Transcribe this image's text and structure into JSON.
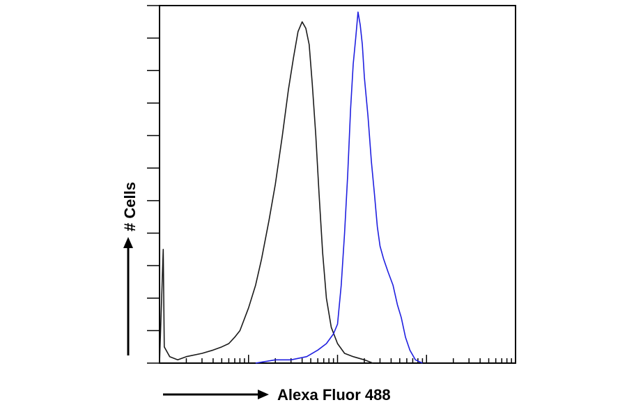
{
  "chart_data": {
    "type": "line",
    "title": "",
    "xlabel": "Alexa Fluor 488",
    "ylabel": "# Cells",
    "x_scale": "log",
    "xlim": [
      1,
      10000
    ],
    "ylim": [
      0,
      110
    ],
    "grid": false,
    "legend": "none",
    "series": [
      {
        "color": "#1a1a1a",
        "points": [
          [
            1.0,
            0
          ],
          [
            1.1,
            35
          ],
          [
            1.13,
            5
          ],
          [
            1.3,
            2
          ],
          [
            1.6,
            1
          ],
          [
            2.0,
            2
          ],
          [
            3.0,
            3
          ],
          [
            4.0,
            4
          ],
          [
            5.0,
            5
          ],
          [
            6.0,
            6
          ],
          [
            7.0,
            8
          ],
          [
            8.0,
            10
          ],
          [
            10.0,
            17
          ],
          [
            12.0,
            24
          ],
          [
            14.0,
            32
          ],
          [
            17.0,
            44
          ],
          [
            20.0,
            55
          ],
          [
            24.0,
            70
          ],
          [
            28.0,
            84
          ],
          [
            32.0,
            94
          ],
          [
            36.0,
            102
          ],
          [
            40.0,
            105
          ],
          [
            44.0,
            103
          ],
          [
            48.0,
            98
          ],
          [
            52.0,
            86
          ],
          [
            57.0,
            70
          ],
          [
            62.0,
            52
          ],
          [
            68.0,
            34
          ],
          [
            75.0,
            20
          ],
          [
            85.0,
            11
          ],
          [
            100.0,
            6
          ],
          [
            120.0,
            3
          ],
          [
            150.0,
            2
          ],
          [
            200.0,
            1
          ],
          [
            250.0,
            0
          ]
        ]
      },
      {
        "color": "#1f1fe0",
        "points": [
          [
            12.0,
            0
          ],
          [
            20.0,
            1
          ],
          [
            30.0,
            1
          ],
          [
            45.0,
            2
          ],
          [
            60.0,
            4
          ],
          [
            75.0,
            6
          ],
          [
            90.0,
            9
          ],
          [
            100.0,
            12
          ],
          [
            110.0,
            24
          ],
          [
            120.0,
            40
          ],
          [
            130.0,
            58
          ],
          [
            140.0,
            78
          ],
          [
            150.0,
            92
          ],
          [
            160.0,
            100
          ],
          [
            170.0,
            108
          ],
          [
            180.0,
            104
          ],
          [
            190.0,
            98
          ],
          [
            200.0,
            88
          ],
          [
            220.0,
            76
          ],
          [
            240.0,
            62
          ],
          [
            260.0,
            52
          ],
          [
            280.0,
            42
          ],
          [
            300.0,
            36
          ],
          [
            330.0,
            32
          ],
          [
            370.0,
            28
          ],
          [
            420.0,
            24
          ],
          [
            470.0,
            18
          ],
          [
            520.0,
            14
          ],
          [
            580.0,
            8
          ],
          [
            650.0,
            4
          ],
          [
            750.0,
            1
          ],
          [
            900.0,
            0
          ]
        ]
      }
    ]
  }
}
